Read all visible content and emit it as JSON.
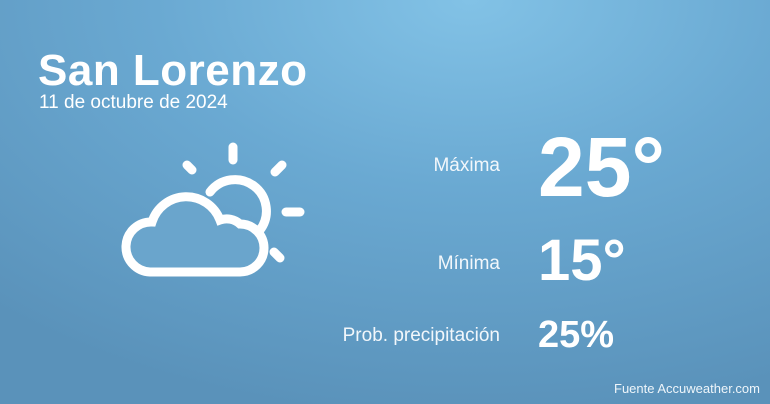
{
  "city": "San Lorenzo",
  "date": "11 de octubre de 2024",
  "weather_icon": "partly-cloudy-icon",
  "max": {
    "label": "Máxima",
    "value": "25°"
  },
  "min": {
    "label": "Mínima",
    "value": "15°"
  },
  "precip": {
    "label": "Prob. precipitación",
    "value": "25%"
  },
  "source": "Fuente Accuweather.com"
}
